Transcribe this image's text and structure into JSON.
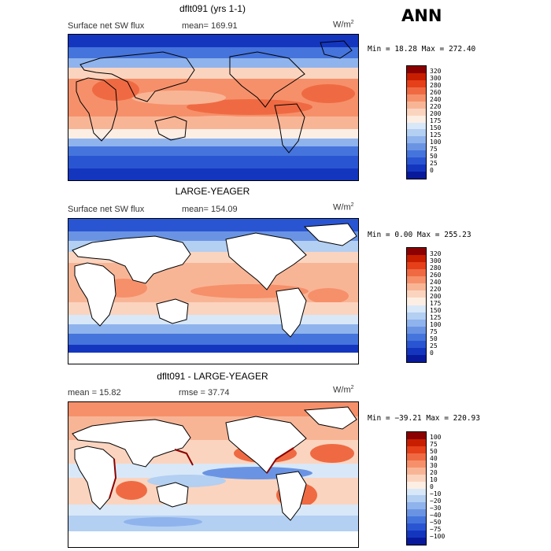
{
  "season": "ANN",
  "units": "W/m",
  "units_exp": "2",
  "panels": [
    {
      "title": "dflt091 (yrs 1-1)",
      "left_label": "Surface net SW flux",
      "mid_label": "mean= 169.91",
      "minmax": "Min =  18.28 Max = 272.40",
      "colorbar": {
        "colors": [
          "#8b0000",
          "#c81e00",
          "#e5401a",
          "#ef6a42",
          "#f6906a",
          "#f8b596",
          "#fbd4bf",
          "#fdeee4",
          "#d8e8f8",
          "#b3cff2",
          "#8fb3ec",
          "#6a94e3",
          "#4574dc",
          "#2a55d2",
          "#1436bf",
          "#081a9b"
        ],
        "ticks": [
          "320",
          "300",
          "280",
          "260",
          "240",
          "220",
          "200",
          "175",
          "150",
          "125",
          "100",
          "75",
          "50",
          "25",
          "0"
        ]
      }
    },
    {
      "title": "LARGE-YEAGER",
      "left_label": "Surface net SW flux",
      "mid_label": "mean= 154.09",
      "minmax": "Min =   0.00 Max = 255.23",
      "colorbar": {
        "colors": [
          "#8b0000",
          "#c81e00",
          "#e5401a",
          "#ef6a42",
          "#f6906a",
          "#f8b596",
          "#fbd4bf",
          "#fdeee4",
          "#d8e8f8",
          "#b3cff2",
          "#8fb3ec",
          "#6a94e3",
          "#4574dc",
          "#2a55d2",
          "#1436bf",
          "#081a9b"
        ],
        "ticks": [
          "320",
          "300",
          "280",
          "260",
          "240",
          "220",
          "200",
          "175",
          "150",
          "125",
          "100",
          "75",
          "50",
          "25",
          "0"
        ]
      }
    },
    {
      "title": "dflt091 - LARGE-YEAGER",
      "left_label": "mean =  15.82",
      "mid_label": "rmse =  37.74",
      "minmax": "Min = −39.21 Max = 220.93",
      "colorbar": {
        "colors": [
          "#8b0000",
          "#c81e00",
          "#e5401a",
          "#ef6a42",
          "#f6906a",
          "#f8b596",
          "#fbd4bf",
          "#fdeee4",
          "#d8e8f8",
          "#b3cff2",
          "#8fb3ec",
          "#6a94e3",
          "#4574dc",
          "#2a55d2",
          "#1436bf",
          "#081a9b"
        ],
        "ticks": [
          "100",
          "75",
          "50",
          "40",
          "30",
          "20",
          "10",
          "0",
          "−10",
          "−20",
          "−30",
          "−40",
          "−50",
          "−75",
          "−100"
        ]
      }
    }
  ]
}
